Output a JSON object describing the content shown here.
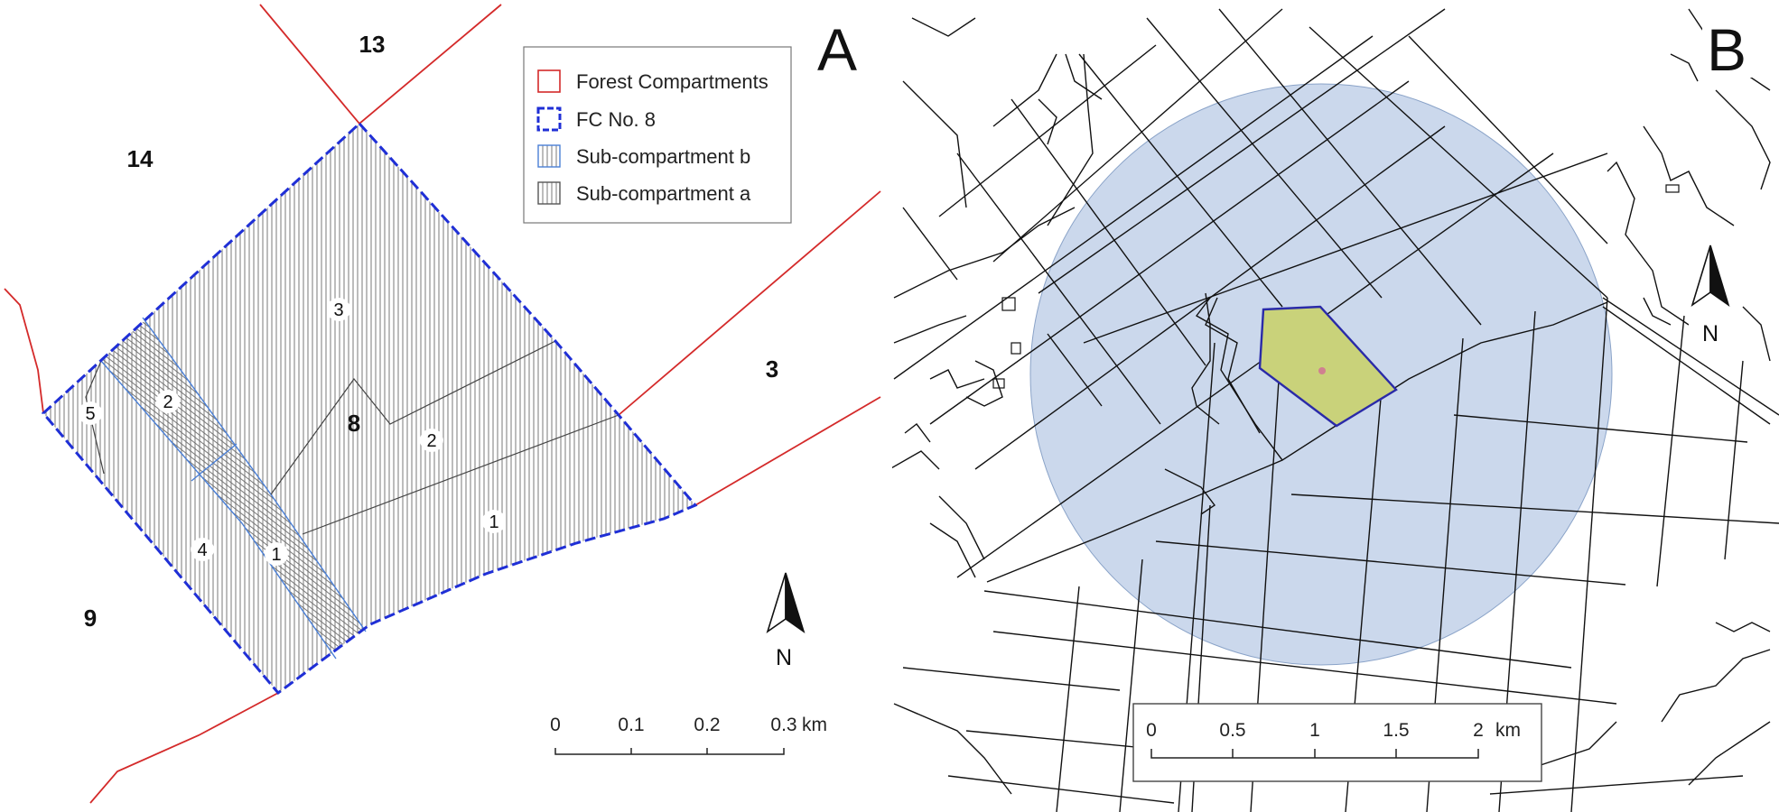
{
  "panel_a": {
    "letter": "A",
    "compartment_labels": [
      "13",
      "14",
      "3",
      "9",
      "8"
    ],
    "sub_labels": [
      "3",
      "2",
      "5",
      "2",
      "1",
      "4",
      "1"
    ],
    "legend": {
      "items": [
        {
          "label": "Forest Compartments",
          "swatch": "red-outline",
          "color": "#d42a2a"
        },
        {
          "label": "FC No. 8",
          "swatch": "blue-dashed",
          "color": "#1f2fd6"
        },
        {
          "label": "Sub-compartment b",
          "swatch": "hatch-blue",
          "color": "#4a7fd6"
        },
        {
          "label": "Sub-compartment a",
          "swatch": "hatch-grey",
          "color": "#555555"
        }
      ]
    },
    "scale": {
      "ticks": [
        "0",
        "0.1",
        "0.2",
        "0.3"
      ],
      "unit": "km"
    },
    "north": "N"
  },
  "panel_b": {
    "letter": "B",
    "colors": {
      "buffer": "#a9bedf",
      "highlight": "#c9d27a",
      "center_point": "#d08090"
    },
    "scale": {
      "ticks": [
        "0",
        "0.5",
        "1",
        "1.5",
        "2"
      ],
      "unit": "km"
    },
    "north": "N"
  }
}
